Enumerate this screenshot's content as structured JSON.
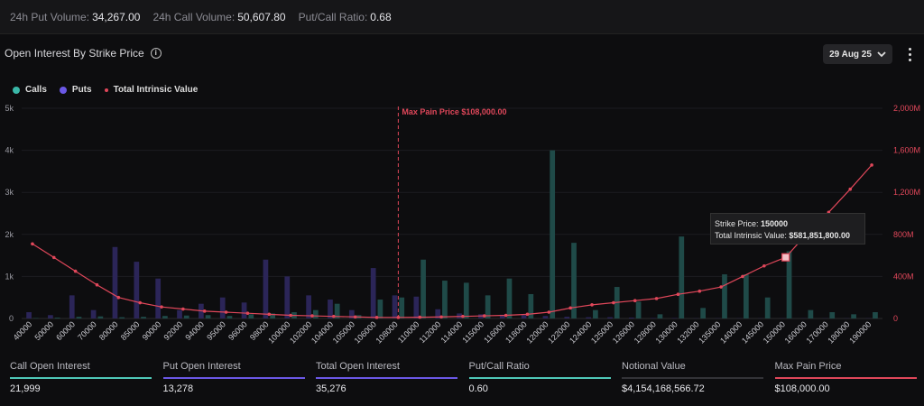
{
  "topbar": {
    "put_volume_label": "24h Put Volume:",
    "put_volume_value": "34,267.00",
    "call_volume_label": "24h Call Volume:",
    "call_volume_value": "50,607.80",
    "ratio_label": "Put/Call Ratio:",
    "ratio_value": "0.68"
  },
  "header": {
    "title": "Open Interest By Strike Price",
    "info_icon": "i",
    "date_select": "29 Aug 25"
  },
  "legend": {
    "calls": "Calls",
    "puts": "Puts",
    "intrinsic": "Total Intrinsic Value"
  },
  "colors": {
    "calls": "#1f4a48",
    "puts": "#2b2558",
    "intrinsic": "#e0475a",
    "calls_legend": "#3ab8a8",
    "puts_legend": "#6b58e6"
  },
  "tooltip": {
    "strike_label": "Strike Price:",
    "strike_value": "150000",
    "value_label": "Total Intrinsic Value:",
    "value_value": "$581,851,800.00"
  },
  "chart_data": {
    "type": "bar",
    "categories": [
      "40000",
      "50000",
      "60000",
      "70000",
      "80000",
      "85000",
      "90000",
      "92000",
      "94000",
      "95000",
      "96000",
      "98000",
      "100000",
      "102000",
      "104000",
      "105000",
      "106000",
      "108000",
      "110000",
      "112000",
      "114000",
      "115000",
      "116000",
      "118000",
      "120000",
      "122000",
      "124000",
      "125000",
      "126000",
      "128000",
      "130000",
      "132000",
      "135000",
      "140000",
      "145000",
      "150000",
      "160000",
      "170000",
      "180000",
      "190000"
    ],
    "y_ticks": [
      "0",
      "1k",
      "2k",
      "3k",
      "4k",
      "5k"
    ],
    "y_right_ticks": [
      "0",
      "400M",
      "800M",
      "1,200M",
      "1,600M",
      "2,000M"
    ],
    "ylim": [
      0,
      5000
    ],
    "y2lim": [
      0,
      2000000000
    ],
    "series": [
      {
        "name": "Calls",
        "values": [
          10,
          20,
          40,
          50,
          30,
          40,
          60,
          70,
          80,
          60,
          100,
          120,
          150,
          200,
          350,
          80,
          450,
          500,
          1400,
          900,
          850,
          550,
          950,
          580,
          4000,
          1800,
          200,
          750,
          400,
          100,
          1950,
          250,
          1050,
          1050,
          500,
          1600,
          200,
          150,
          100,
          150
        ]
      },
      {
        "name": "Puts",
        "values": [
          150,
          80,
          550,
          200,
          1700,
          1350,
          950,
          200,
          350,
          500,
          380,
          1400,
          1000,
          550,
          450,
          200,
          1200,
          550,
          520,
          220,
          120,
          100,
          90,
          80,
          60,
          40,
          30,
          30,
          20,
          10,
          10,
          5,
          5,
          5,
          5,
          5,
          5,
          5,
          5,
          5
        ]
      },
      {
        "name": "Total Intrinsic Value",
        "values": [
          710000000,
          580000000,
          450000000,
          320000000,
          200000000,
          150000000,
          110000000,
          90000000,
          70000000,
          60000000,
          50000000,
          40000000,
          30000000,
          25000000,
          20000000,
          15000000,
          10000000,
          10000000,
          12000000,
          15000000,
          20000000,
          25000000,
          30000000,
          40000000,
          60000000,
          100000000,
          130000000,
          150000000,
          170000000,
          190000000,
          230000000,
          260000000,
          300000000,
          400000000,
          500000000,
          581851800,
          810000000,
          1010000000,
          1230000000,
          1460000000
        ]
      }
    ],
    "annotation": "Max Pain Price $108,000.00",
    "annotation_x": "108000"
  },
  "footer": [
    {
      "label": "Call Open Interest",
      "value": "21,999",
      "color": "#4fc9b8"
    },
    {
      "label": "Put Open Interest",
      "value": "13,278",
      "color": "#6b58e6"
    },
    {
      "label": "Total Open Interest",
      "value": "35,276",
      "color": "#6b58e6"
    },
    {
      "label": "Put/Call Ratio",
      "value": "0.60",
      "color": "#4fc9b8"
    },
    {
      "label": "Notional Value",
      "value": "$4,154,168,566.72",
      "color": "#333338"
    },
    {
      "label": "Max Pain Price",
      "value": "$108,000.00",
      "color": "#e0475a"
    }
  ]
}
